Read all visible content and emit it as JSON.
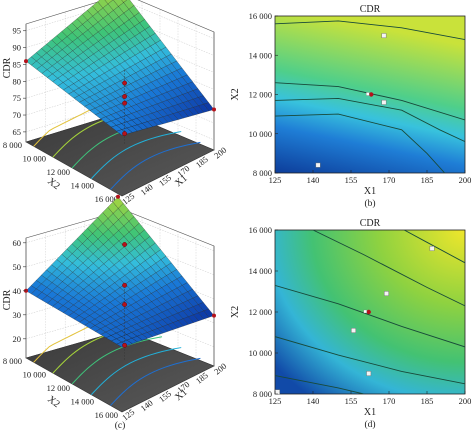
{
  "chart_data": [
    {
      "panel": "a",
      "type": "surface3d",
      "caption": "(a)",
      "zlabel": "CDR",
      "xlabel": "X1",
      "ylabel": "X2",
      "x_ticks": [
        "125",
        "140",
        "155",
        "170",
        "185",
        "200"
      ],
      "y_ticks": [
        "8 000",
        "10 000",
        "12 000",
        "14 000",
        "16 000"
      ],
      "z_ticks": [
        "65",
        "70",
        "75",
        "80",
        "85",
        "90",
        "95"
      ],
      "xlim": [
        125,
        200
      ],
      "ylim": [
        8000,
        16000
      ],
      "zlim": [
        62,
        97
      ],
      "surface_corners": {
        "x125_y8000": 80,
        "x200_y8000": 74,
        "x125_y16000": 86,
        "x200_y16000": 95
      },
      "design_points_cdr": [
        80,
        74,
        76,
        65
      ]
    },
    {
      "panel": "b",
      "type": "contour",
      "caption": "(b)",
      "title": "CDR",
      "xlabel": "X1",
      "ylabel": "X2",
      "x_ticks": [
        "125",
        "140",
        "155",
        "170",
        "185",
        "200"
      ],
      "y_ticks": [
        "8 000",
        "10 000",
        "12 000",
        "14 000",
        "16 000"
      ],
      "xlim": [
        125,
        200
      ],
      "ylim": [
        8000,
        16000
      ],
      "contour_labels": [
        "",
        "",
        "",
        ""
      ],
      "design_points": [
        {
          "x": 163,
          "y": 12000
        },
        {
          "x": 168,
          "y": 15000
        },
        {
          "x": 168,
          "y": 11600
        },
        {
          "x": 142,
          "y": 8400
        }
      ]
    },
    {
      "panel": "c",
      "type": "surface3d",
      "caption": "(c)",
      "zlabel": "CDR",
      "xlabel": "X1",
      "ylabel": "X2",
      "x_ticks": [
        "125",
        "140",
        "155",
        "170",
        "185",
        "200"
      ],
      "y_ticks": [
        "8 000",
        "10 000",
        "12 000",
        "14 000",
        "16 000"
      ],
      "z_ticks": [
        "20",
        "30",
        "40",
        "50",
        "60"
      ],
      "xlim": [
        125,
        200
      ],
      "ylim": [
        8000,
        16000
      ],
      "zlim": [
        12,
        62
      ],
      "surface_corners": {
        "x125_y8000": 39,
        "x200_y8000": 33,
        "x125_y16000": 40,
        "x200_y16000": 60
      },
      "design_points_cdr": [
        60,
        43,
        35,
        18
      ]
    },
    {
      "panel": "d",
      "type": "contour",
      "caption": "(d)",
      "title": "CDR",
      "xlabel": "X1",
      "ylabel": "X2",
      "x_ticks": [
        "125",
        "140",
        "155",
        "170",
        "185",
        "200"
      ],
      "y_ticks": [
        "8 000",
        "10 000",
        "12 000",
        "14 000",
        "16 000"
      ],
      "xlim": [
        125,
        200
      ],
      "ylim": [
        8000,
        16000
      ],
      "contour_labels": [
        "",
        "",
        "",
        "",
        ""
      ],
      "design_points": [
        {
          "x": 162,
          "y": 12000
        },
        {
          "x": 187,
          "y": 15100
        },
        {
          "x": 169,
          "y": 12900
        },
        {
          "x": 156,
          "y": 11100
        },
        {
          "x": 162,
          "y": 9000
        },
        {
          "x": 126,
          "y": 8100
        }
      ]
    }
  ]
}
